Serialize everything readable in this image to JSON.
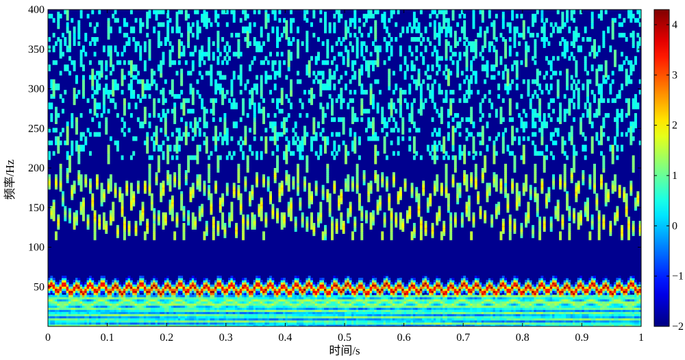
{
  "chart_data": {
    "type": "heatmap",
    "title": "",
    "xlabel": "时间/s",
    "ylabel": "频率/Hz",
    "xlim": [
      0,
      1
    ],
    "ylim": [
      0,
      400
    ],
    "x_ticks": [
      0,
      0.1,
      0.2,
      0.3,
      0.4,
      0.5,
      0.6,
      0.7,
      0.8,
      0.9,
      1
    ],
    "x_tick_labels": [
      "0",
      "0.1",
      "0.2",
      "0.3",
      "0.4",
      "0.5",
      "0.6",
      "0.7",
      "0.8",
      "0.9",
      "1"
    ],
    "y_ticks": [
      50,
      100,
      150,
      200,
      250,
      300,
      350,
      400
    ],
    "y_tick_labels": [
      "50",
      "100",
      "150",
      "200",
      "250",
      "300",
      "350",
      "400"
    ],
    "colorbar": {
      "colormap": "jet",
      "range": [
        -2,
        4.3
      ],
      "ticks": [
        -2,
        -1,
        0,
        1,
        2,
        3,
        4
      ],
      "tick_labels": [
        "−2",
        "−1",
        "0",
        "1",
        "2",
        "3",
        "4"
      ]
    },
    "features": {
      "dominant_ridge_hz": 48,
      "secondary_ridge_hz": 30,
      "oscillatory_band_hz": [
        110,
        200
      ],
      "low_energy_region_hz": [
        60,
        110
      ],
      "background_value": -2
    }
  }
}
